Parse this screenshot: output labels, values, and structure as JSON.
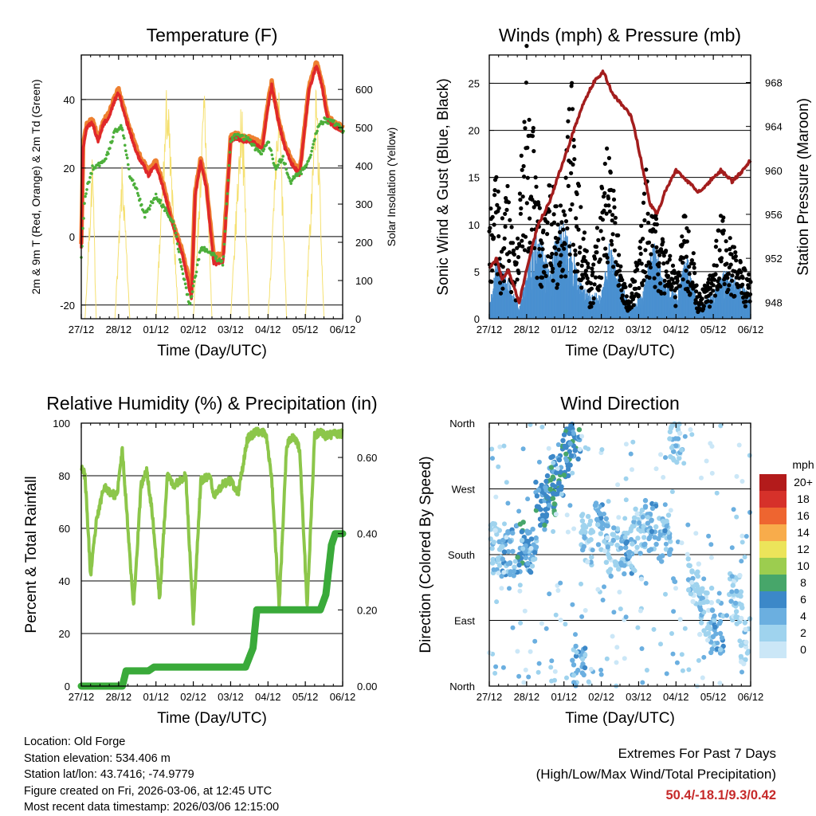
{
  "time_ticks": [
    "27/12",
    "28/12",
    "01/12",
    "02/12",
    "03/12",
    "04/12",
    "05/12",
    "06/12"
  ],
  "colors": {
    "t2m": "#e0282a",
    "t9m": "#ee8030",
    "td": "#4caf3a",
    "solar": "#f5e070",
    "gust": "#000000",
    "wind": "#4a90d0",
    "pressure": "#a31d1d",
    "rh": "#8cc64a",
    "precip": "#3aaa3a",
    "grid": "#000000",
    "extremes": "#c62a2a"
  },
  "chart_data": [
    {
      "id": "temperature",
      "type": "line",
      "title": "Temperature (F)",
      "xlabel": "Time (Day/UTC)",
      "ylabel": "2m & 9m T (Red, Orange) & 2m Td (Green)",
      "y2label": "Solar Insolation (Yellow)",
      "xlim": [
        0,
        7
      ],
      "ylim": [
        -24,
        53
      ],
      "y2lim": [
        0,
        690
      ],
      "yticks": [
        -20,
        0,
        20,
        40
      ],
      "y2ticks": [
        0,
        100,
        200,
        300,
        400,
        500,
        600
      ],
      "gridlines": [
        -20,
        0,
        20,
        40
      ],
      "series": [
        {
          "name": "2m T",
          "color": "#e0282a",
          "x": [
            0,
            0.05,
            0.15,
            0.3,
            0.45,
            0.6,
            0.75,
            0.9,
            1,
            1.2,
            1.5,
            1.8,
            2,
            2.2,
            2.4,
            2.7,
            2.95,
            3.05,
            3.2,
            3.35,
            3.55,
            3.8,
            4,
            4.15,
            4.3,
            4.5,
            4.85,
            5,
            5.1,
            5.25,
            5.45,
            5.6,
            5.85,
            6.1,
            6.3,
            6.45,
            6.6,
            6.8,
            7
          ],
          "y": [
            -3,
            26,
            32,
            33,
            28,
            33,
            35,
            40,
            42,
            34,
            24,
            18,
            21,
            14,
            5,
            -5,
            -18,
            12,
            22,
            14,
            -8,
            -7,
            28,
            29,
            28,
            28,
            26,
            38,
            44,
            35,
            26,
            22,
            18,
            43,
            50,
            44,
            34,
            32,
            31
          ]
        },
        {
          "name": "9m T",
          "color": "#ee8030",
          "x": [
            0,
            0.05,
            0.15,
            0.3,
            0.45,
            0.6,
            0.75,
            0.9,
            1,
            1.2,
            1.5,
            1.8,
            2,
            2.2,
            2.4,
            2.7,
            2.95,
            3.05,
            3.2,
            3.35,
            3.55,
            3.8,
            4,
            4.15,
            4.3,
            4.5,
            4.85,
            5,
            5.1,
            5.25,
            5.45,
            5.6,
            5.85,
            6.1,
            6.3,
            6.45,
            6.6,
            6.8,
            7
          ],
          "y": [
            -2,
            27,
            33,
            34,
            29,
            34,
            36,
            41,
            43,
            35,
            25,
            19,
            22,
            15,
            6,
            -4,
            -16,
            13,
            23,
            15,
            -6,
            -5,
            29,
            30,
            29,
            29,
            27,
            39,
            45,
            36,
            27,
            23,
            19,
            44,
            51,
            45,
            35,
            33,
            32
          ]
        },
        {
          "name": "2m Td",
          "color": "#4caf3a",
          "x": [
            0,
            0.1,
            0.3,
            0.5,
            0.7,
            0.9,
            1.1,
            1.3,
            1.5,
            1.7,
            2,
            2.3,
            2.5,
            2.7,
            2.9,
            3,
            3.2,
            3.5,
            3.8,
            4,
            4.2,
            4.5,
            4.8,
            5,
            5.2,
            5.4,
            5.6,
            5.9,
            6.1,
            6.3,
            6.5,
            6.8,
            7
          ],
          "y": [
            -6,
            12,
            20,
            21,
            24,
            31,
            32,
            18,
            13,
            6,
            12,
            7,
            3,
            -10,
            -20,
            -15,
            -3,
            -5,
            -8,
            28,
            30,
            28,
            24,
            28,
            20,
            23,
            16,
            19,
            22,
            31,
            34,
            33,
            31
          ]
        },
        {
          "name": "Solar Insolation",
          "color": "#f5e070",
          "axis": "y2",
          "x": [
            0,
            0.1,
            0.3,
            0.4,
            0.9,
            1.1,
            1.3,
            1.7,
            2.0,
            2.3,
            2.6,
            2.8,
            3.0,
            3.3,
            3.5,
            3.8,
            4.0,
            4.3,
            4.5,
            4.8,
            5.0,
            5.3,
            5.5,
            5.8,
            6.0,
            6.3,
            6.5,
            6.8,
            7
          ],
          "y": [
            0,
            0,
            450,
            0,
            0,
            420,
            0,
            0,
            0,
            650,
            0,
            0,
            0,
            640,
            0,
            0,
            0,
            620,
            0,
            0,
            0,
            620,
            0,
            0,
            0,
            650,
            0,
            0,
            0
          ]
        }
      ]
    },
    {
      "id": "winds_pressure",
      "type": "line",
      "title": "Winds (mph) & Pressure (mb)",
      "xlabel": "Time (Day/UTC)",
      "ylabel": "Sonic Wind & Gust (Blue, Black)",
      "y2label": "Station Pressure (Maroon)",
      "xlim": [
        0,
        7
      ],
      "ylim": [
        0,
        28
      ],
      "y2lim": [
        946.5,
        970.5
      ],
      "yticks": [
        0,
        5,
        10,
        15,
        20,
        25
      ],
      "y2ticks": [
        948,
        952,
        956,
        960,
        964,
        968
      ],
      "gridlines": [
        0,
        5,
        10,
        15,
        20,
        25
      ],
      "series": [
        {
          "name": "Station Pressure",
          "color": "#a31d1d",
          "axis": "y2",
          "x": [
            0,
            0.2,
            0.35,
            0.5,
            0.8,
            1.0,
            1.3,
            1.6,
            1.9,
            2.2,
            2.5,
            2.8,
            3.05,
            3.3,
            3.55,
            3.8,
            4.0,
            4.3,
            4.5,
            4.7,
            5.0,
            5.3,
            5.6,
            5.9,
            6.2,
            6.5,
            6.8,
            7
          ],
          "y": [
            951,
            952,
            950,
            951,
            948,
            951,
            955,
            957,
            960,
            963,
            966,
            968,
            969,
            967,
            966,
            965,
            962,
            957,
            956,
            958,
            960,
            959,
            958,
            959,
            960,
            959,
            960,
            961
          ]
        },
        {
          "name": "Sonic Wind",
          "color": "#4a90d0",
          "x": [
            0,
            0.2,
            0.5,
            0.8,
            1.1,
            1.3,
            1.6,
            1.9,
            2.2,
            2.4,
            2.7,
            3.0,
            3.2,
            3.5,
            3.8,
            4.1,
            4.4,
            4.7,
            5.0,
            5.3,
            5.6,
            6.0,
            6.3,
            6.6,
            7
          ],
          "y": [
            1,
            5,
            3,
            1,
            5,
            7,
            4,
            8,
            6,
            3,
            2,
            2,
            6,
            3,
            1,
            2,
            6,
            3,
            2,
            5,
            1,
            2,
            4,
            3,
            2
          ]
        },
        {
          "name": "Gust",
          "color": "#000000",
          "type": "scatter",
          "x": [
            0.1,
            0.2,
            0.3,
            0.5,
            0.7,
            0.9,
            1.0,
            1.1,
            1.2,
            1.3,
            1.4,
            1.6,
            1.8,
            2.0,
            2.2,
            2.3,
            2.5,
            2.7,
            3.0,
            3.2,
            3.4,
            3.7,
            4.0,
            4.2,
            4.4,
            4.6,
            5.0,
            5.2,
            5.4,
            5.6,
            6.0,
            6.2,
            6.4,
            6.6,
            6.9
          ],
          "y": [
            10,
            14,
            8,
            12,
            5,
            18,
            26,
            16,
            19,
            12,
            8,
            15,
            10,
            12,
            22,
            14,
            10,
            3,
            12,
            17,
            9,
            2,
            6,
            14,
            10,
            8,
            4,
            10,
            8,
            2,
            5,
            10,
            8,
            6,
            4
          ]
        }
      ]
    },
    {
      "id": "humidity_precip",
      "type": "line",
      "title": "Relative Humidity (%) & Precipitation (in)",
      "xlabel": "Time (Day/UTC)",
      "ylabel": "Percent & Total Rainfall",
      "xlim": [
        0,
        7
      ],
      "ylim": [
        0,
        100
      ],
      "y2lim": [
        0,
        0.69
      ],
      "yticks": [
        0,
        20,
        40,
        60,
        80,
        100
      ],
      "y2ticks": [
        0.0,
        0.2,
        0.4,
        0.6
      ],
      "gridlines": [
        0,
        20,
        40,
        60,
        80
      ],
      "series": [
        {
          "name": "Relative Humidity",
          "color": "#8cc64a",
          "x": [
            0,
            0.1,
            0.25,
            0.4,
            0.6,
            0.75,
            0.95,
            1.1,
            1.2,
            1.4,
            1.6,
            1.75,
            1.9,
            2.1,
            2.3,
            2.5,
            2.6,
            2.8,
            3.0,
            3.2,
            3.45,
            3.55,
            3.8,
            4.0,
            4.2,
            4.45,
            4.7,
            4.95,
            5.1,
            5.3,
            5.5,
            5.7,
            5.85,
            6.05,
            6.25,
            6.4,
            6.55,
            6.8,
            7
          ],
          "y": [
            84,
            80,
            42,
            62,
            76,
            74,
            72,
            90,
            70,
            30,
            76,
            82,
            66,
            33,
            80,
            76,
            78,
            80,
            25,
            78,
            80,
            72,
            77,
            78,
            73,
            94,
            97,
            96,
            79,
            30,
            92,
            95,
            90,
            30,
            95,
            97,
            95,
            96,
            96
          ]
        },
        {
          "name": "Total Precipitation",
          "color": "#3aaa3a",
          "axis": "y2",
          "x": [
            0,
            1.1,
            1.2,
            1.8,
            1.95,
            4.4,
            4.6,
            4.7,
            5.3,
            6.4,
            6.55,
            6.7,
            6.8,
            7
          ],
          "y": [
            0,
            0,
            0.04,
            0.04,
            0.05,
            0.05,
            0.1,
            0.2,
            0.2,
            0.2,
            0.24,
            0.37,
            0.4,
            0.4
          ]
        }
      ]
    },
    {
      "id": "wind_direction",
      "type": "scatter",
      "title": "Wind Direction",
      "xlabel": "Time (Day/UTC)",
      "ylabel": "Direction (Colored By Speed)",
      "xlim": [
        0,
        7
      ],
      "ylim": [
        0,
        360
      ],
      "ytick_labels": [
        "North",
        "East",
        "South",
        "West",
        "North"
      ],
      "ytick_values": [
        0,
        90,
        180,
        270,
        360
      ],
      "gridlines": [
        90,
        180,
        270
      ],
      "colorbar": {
        "label": "mph",
        "labels": [
          "0",
          "2",
          "4",
          "6",
          "8",
          "10",
          "12",
          "14",
          "16",
          "18",
          "20+"
        ],
        "colors": [
          "#cbe7f7",
          "#9fd3ee",
          "#6bafe0",
          "#3c88c8",
          "#47a66a",
          "#9ccd4f",
          "#ece45a",
          "#f8ac4b",
          "#ee6530",
          "#d6312a",
          "#b31b1b"
        ]
      },
      "clusters": [
        {
          "x": 0.2,
          "y": 190,
          "speed": 2
        },
        {
          "x": 0.5,
          "y": 185,
          "speed": 4
        },
        {
          "x": 0.9,
          "y": 190,
          "speed": 6
        },
        {
          "x": 1.1,
          "y": 180,
          "speed": 4
        },
        {
          "x": 1.4,
          "y": 245,
          "speed": 6
        },
        {
          "x": 1.6,
          "y": 265,
          "speed": 6
        },
        {
          "x": 1.8,
          "y": 290,
          "speed": 6
        },
        {
          "x": 2.1,
          "y": 320,
          "speed": 6
        },
        {
          "x": 2.3,
          "y": 345,
          "speed": 6
        },
        {
          "x": 2.4,
          "y": 20,
          "speed": 4
        },
        {
          "x": 2.6,
          "y": 200,
          "speed": 2
        },
        {
          "x": 3.0,
          "y": 220,
          "speed": 4
        },
        {
          "x": 3.3,
          "y": 185,
          "speed": 2
        },
        {
          "x": 3.7,
          "y": 185,
          "speed": 4
        },
        {
          "x": 4.0,
          "y": 210,
          "speed": 2
        },
        {
          "x": 4.3,
          "y": 220,
          "speed": 4
        },
        {
          "x": 4.7,
          "y": 200,
          "speed": 4
        },
        {
          "x": 5.0,
          "y": 340,
          "speed": 2
        },
        {
          "x": 5.5,
          "y": 140,
          "speed": 2
        },
        {
          "x": 5.8,
          "y": 100,
          "speed": 2
        },
        {
          "x": 6.1,
          "y": 80,
          "speed": 4
        },
        {
          "x": 6.6,
          "y": 120,
          "speed": 2
        },
        {
          "x": 6.9,
          "y": 60,
          "speed": 2
        }
      ]
    }
  ],
  "info": {
    "location": "Location: Old Forge",
    "elevation": "Station elevation: 534.406 m",
    "latlon": "Station lat/lon: 43.7416; -74.9779",
    "created": "Figure created on Fri, 2026-03-06, at 12:45 UTC",
    "recent": "Most recent data timestamp: 2026/03/06 12:15:00"
  },
  "extremes": {
    "title": "Extremes For Past 7 Days",
    "subtitle": "(High/Low/Max Wind/Total Precipitation)",
    "values": "50.4/-18.1/9.3/0.42"
  }
}
